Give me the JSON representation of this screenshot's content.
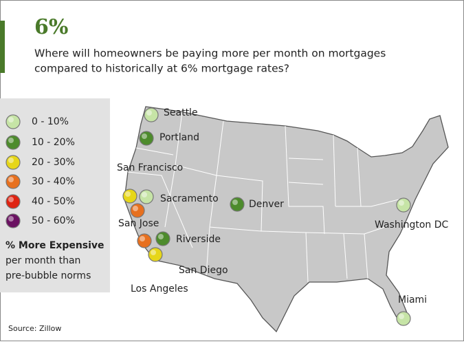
{
  "header": {
    "title": "6%",
    "question_lines": [
      "Where will homeowners be paying more per month on mortgages",
      "compared to historically at 6% mortgage rates?"
    ]
  },
  "legend": {
    "items": [
      {
        "label": "0 - 10%",
        "color": "#c6e4a6"
      },
      {
        "label": "10 - 20%",
        "color": "#4d8b2c"
      },
      {
        "label": "20 - 30%",
        "color": "#e6d619"
      },
      {
        "label": "30 - 40%",
        "color": "#e7701f"
      },
      {
        "label": "40 - 50%",
        "color": "#de2412"
      },
      {
        "label": "50 - 60%",
        "color": "#6b1262"
      }
    ],
    "caption_lines": [
      {
        "bold": "% More Expensive",
        "rest": ""
      },
      {
        "bold": "",
        "rest": "per month than"
      },
      {
        "bold": "",
        "rest": "pre-bubble norms"
      }
    ]
  },
  "cities": [
    {
      "name": "Seattle",
      "color": "#c6e4a6"
    },
    {
      "name": "Portland",
      "color": "#4d8b2c"
    },
    {
      "name": "San Francisco",
      "color": "#e6d619"
    },
    {
      "name": "Sacramento",
      "color": "#c6e4a6"
    },
    {
      "name": "San Jose",
      "color": "#e7701f"
    },
    {
      "name": "Denver",
      "color": "#4d8b2c"
    },
    {
      "name": "Riverside",
      "color": "#4d8b2c"
    },
    {
      "name": "Los Angeles",
      "color": "#e7701f"
    },
    {
      "name": "San Diego",
      "color": "#e6d619"
    },
    {
      "name": "Washington DC",
      "color": "#c6e4a6"
    },
    {
      "name": "Miami",
      "color": "#c6e4a6"
    }
  ],
  "source": "Source: Zillow"
}
